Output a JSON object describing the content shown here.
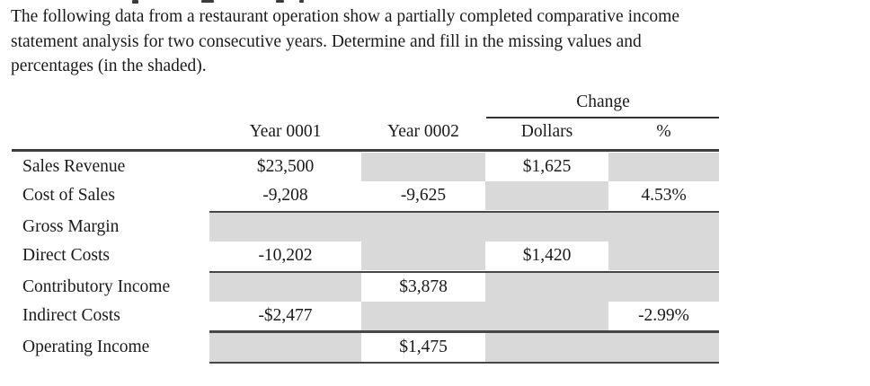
{
  "instructions": {
    "line1": "The following data from a restaurant operation show a partially completed comparative income",
    "line2": "statement analysis for two consecutive years. Determine and fill in the missing values and",
    "line3": "percentages (in the shaded)."
  },
  "table": {
    "change_group_header": "Change",
    "columns": {
      "year1": "Year 0001",
      "year2": "Year 0002",
      "dollars": "Dollars",
      "percent": "%"
    },
    "shaded_cell_color": "#d9d9d9",
    "rows": [
      {
        "label": "Sales Revenue",
        "year1": "$23,500",
        "year2": "",
        "dollars": "$1,625",
        "percent": "",
        "shaded": [
          "year2",
          "percent"
        ]
      },
      {
        "label": "Cost of Sales",
        "year1": "-9,208",
        "year2": "-9,625",
        "dollars": "",
        "percent": "4.53%",
        "shaded": [
          "dollars"
        ]
      },
      {
        "label": "Gross Margin",
        "year1": "",
        "year2": "",
        "dollars": "",
        "percent": "",
        "shaded": [
          "year1",
          "year2",
          "dollars",
          "percent"
        ]
      },
      {
        "label": "Direct Costs",
        "year1": "-10,202",
        "year2": "",
        "dollars": "$1,420",
        "percent": "",
        "shaded": [
          "year2",
          "percent"
        ]
      },
      {
        "label": "Contributory Income",
        "year1": "",
        "year2": "$3,878",
        "dollars": "",
        "percent": "",
        "shaded": [
          "year1",
          "dollars",
          "percent"
        ]
      },
      {
        "label": "Indirect Costs",
        "year1": "-$2,477",
        "year2": "",
        "dollars": "",
        "percent": "-2.99%",
        "shaded": [
          "year2",
          "dollars"
        ]
      },
      {
        "label": "Operating Income",
        "year1": "",
        "year2": "$1,475",
        "dollars": "",
        "percent": "",
        "shaded": [
          "year1",
          "dollars",
          "percent"
        ]
      }
    ]
  }
}
